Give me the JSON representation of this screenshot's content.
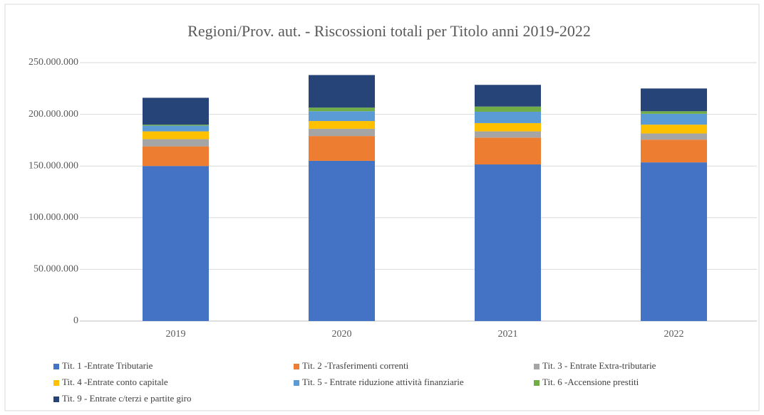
{
  "chart_data": {
    "type": "stacked_bar",
    "title": "Regioni/Prov. aut. - Riscossioni totali per Titolo anni 2019-2022",
    "categories": [
      "2019",
      "2020",
      "2021",
      "2022"
    ],
    "series": [
      {
        "name": "Tit. 1 -Entrate Tributarie",
        "color": "#4472c4",
        "values": [
          150000000,
          155000000,
          151500000,
          153500000
        ]
      },
      {
        "name": "Tit. 2 -Trasferimenti correnti",
        "color": "#ed7d31",
        "values": [
          19000000,
          24000000,
          26000000,
          22000000
        ]
      },
      {
        "name": "Tit. 3 - Entrate Extra-tributarie",
        "color": "#a5a5a5",
        "values": [
          7000000,
          7000000,
          6000000,
          6000000
        ]
      },
      {
        "name": "Tit. 4 -Entrate conto capitale",
        "color": "#ffc000",
        "values": [
          7500000,
          7500000,
          8000000,
          8500000
        ]
      },
      {
        "name": "Tit. 5 - Entrate riduzione attività finanziarie",
        "color": "#5b9bd5",
        "values": [
          5500000,
          9500000,
          11000000,
          10500000
        ]
      },
      {
        "name": "Tit. 6 -Accensione prestiti",
        "color": "#70ad47",
        "values": [
          1000000,
          3500000,
          5000000,
          2500000
        ]
      },
      {
        "name": "Tit. 9 - Entrate c/terzi e partite giro",
        "color": "#264478",
        "values": [
          26000000,
          31500000,
          21000000,
          22000000
        ]
      }
    ],
    "ylim": [
      0,
      250000000
    ],
    "yticks": [
      0,
      {
        "value": 50000000,
        "label": "50.000.000"
      },
      {
        "value": 100000000,
        "label": "100.000.000"
      },
      {
        "value": 150000000,
        "label": "150.000.000"
      },
      {
        "value": 200000000,
        "label": "200.000.000"
      },
      {
        "value": 250000000,
        "label": "250.000.000"
      }
    ],
    "grid": true,
    "legend": "bottom"
  }
}
